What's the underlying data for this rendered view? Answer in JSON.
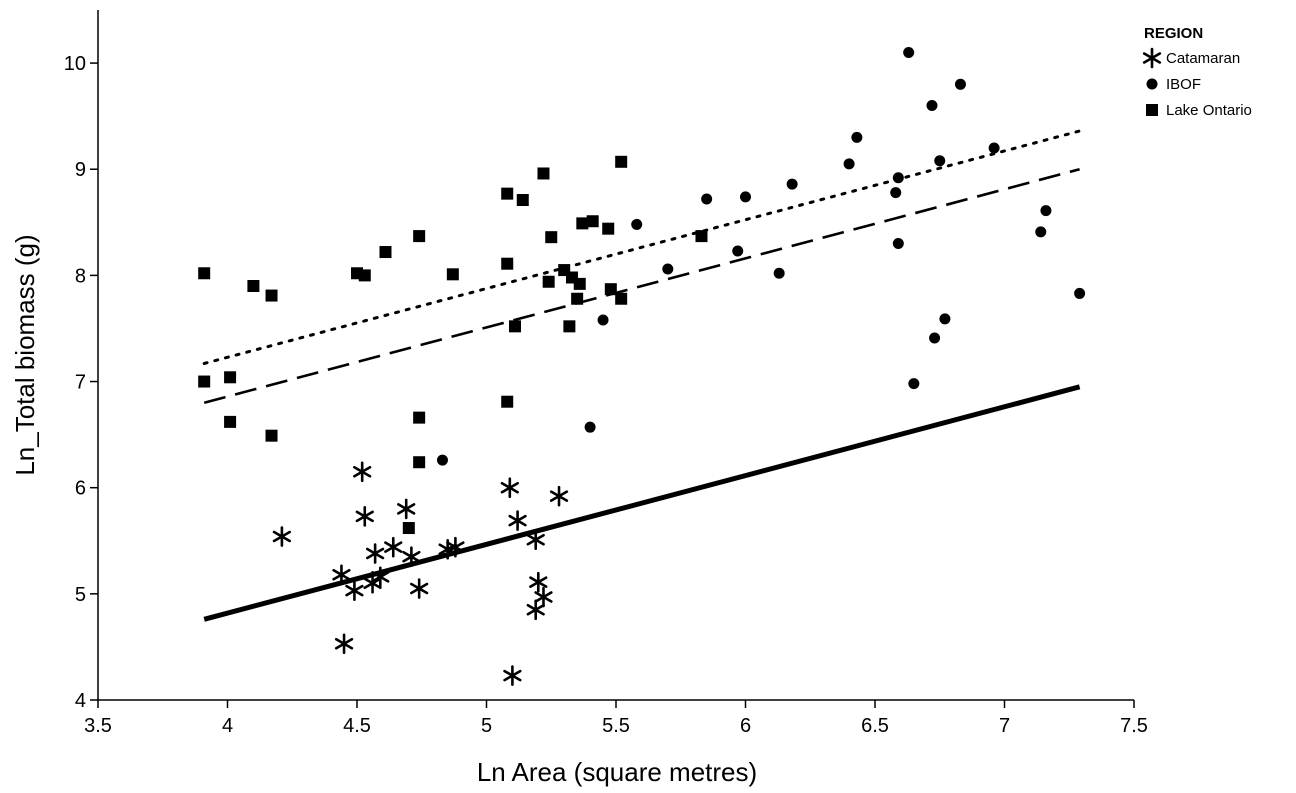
{
  "chart_data": {
    "type": "scatter",
    "title": "",
    "xlabel": "Ln Area (square metres)",
    "ylabel": "Ln_Total biomass (g)",
    "xlim": [
      3.5,
      7.5
    ],
    "ylim": [
      4,
      10.5
    ],
    "xticks": [
      3.5,
      4,
      4.5,
      5,
      5.5,
      6,
      6.5,
      7,
      7.5
    ],
    "xtick_labels": [
      "3.5",
      "4",
      "4.5",
      "5",
      "5.5",
      "6",
      "6.5",
      "7",
      "7.5"
    ],
    "yticks": [
      4,
      5,
      6,
      7,
      8,
      9,
      10
    ],
    "ytick_labels": [
      "4",
      "5",
      "6",
      "7",
      "8",
      "9",
      "10"
    ],
    "grid": false,
    "legend": {
      "title": "REGION",
      "placement": "top-right-outside",
      "entries": [
        "Catamaran",
        "IBOF",
        "Lake Ontario"
      ]
    },
    "series": [
      {
        "name": "Catamaran",
        "marker": "asterisk",
        "points": [
          [
            4.21,
            5.54
          ],
          [
            4.44,
            5.18
          ],
          [
            4.45,
            4.53
          ],
          [
            4.49,
            5.03
          ],
          [
            4.52,
            6.15
          ],
          [
            4.53,
            5.73
          ],
          [
            4.56,
            5.1
          ],
          [
            4.57,
            5.38
          ],
          [
            4.59,
            5.16
          ],
          [
            4.64,
            5.44
          ],
          [
            4.69,
            5.8
          ],
          [
            4.71,
            5.35
          ],
          [
            4.74,
            5.05
          ],
          [
            4.85,
            5.42
          ],
          [
            4.88,
            5.44
          ],
          [
            5.09,
            6.0
          ],
          [
            5.1,
            4.23
          ],
          [
            5.12,
            5.69
          ],
          [
            5.19,
            5.51
          ],
          [
            5.19,
            4.85
          ],
          [
            5.2,
            5.11
          ],
          [
            5.22,
            4.97
          ],
          [
            5.28,
            5.92
          ]
        ]
      },
      {
        "name": "IBOF",
        "marker": "circle",
        "points": [
          [
            4.83,
            6.26
          ],
          [
            5.4,
            6.57
          ],
          [
            5.45,
            7.58
          ],
          [
            5.58,
            8.48
          ],
          [
            5.7,
            8.06
          ],
          [
            5.85,
            8.72
          ],
          [
            5.97,
            8.23
          ],
          [
            6.0,
            8.74
          ],
          [
            6.13,
            8.02
          ],
          [
            6.18,
            8.86
          ],
          [
            6.4,
            9.05
          ],
          [
            6.43,
            9.3
          ],
          [
            6.58,
            8.78
          ],
          [
            6.59,
            8.3
          ],
          [
            6.59,
            8.92
          ],
          [
            6.63,
            10.1
          ],
          [
            6.65,
            6.98
          ],
          [
            6.72,
            9.6
          ],
          [
            6.73,
            7.41
          ],
          [
            6.75,
            9.08
          ],
          [
            6.77,
            7.59
          ],
          [
            6.83,
            9.8
          ],
          [
            6.96,
            9.2
          ],
          [
            7.14,
            8.41
          ],
          [
            7.16,
            8.61
          ],
          [
            7.29,
            7.83
          ]
        ]
      },
      {
        "name": "Lake Ontario",
        "marker": "square",
        "points": [
          [
            3.91,
            8.02
          ],
          [
            3.91,
            7.0
          ],
          [
            4.01,
            7.04
          ],
          [
            4.01,
            6.62
          ],
          [
            4.1,
            7.9
          ],
          [
            4.17,
            7.81
          ],
          [
            4.17,
            6.49
          ],
          [
            4.5,
            8.02
          ],
          [
            4.53,
            8.0
          ],
          [
            4.61,
            8.22
          ],
          [
            4.7,
            5.62
          ],
          [
            4.74,
            8.37
          ],
          [
            4.74,
            6.66
          ],
          [
            4.74,
            6.24
          ],
          [
            4.87,
            8.01
          ],
          [
            5.08,
            8.77
          ],
          [
            5.08,
            8.11
          ],
          [
            5.08,
            6.81
          ],
          [
            5.11,
            7.52
          ],
          [
            5.14,
            8.71
          ],
          [
            5.22,
            8.96
          ],
          [
            5.24,
            7.94
          ],
          [
            5.25,
            8.36
          ],
          [
            5.3,
            8.05
          ],
          [
            5.32,
            7.52
          ],
          [
            5.33,
            7.98
          ],
          [
            5.35,
            7.78
          ],
          [
            5.36,
            7.92
          ],
          [
            5.37,
            8.49
          ],
          [
            5.41,
            8.51
          ],
          [
            5.47,
            8.44
          ],
          [
            5.48,
            7.87
          ],
          [
            5.52,
            9.07
          ],
          [
            5.52,
            7.78
          ],
          [
            5.83,
            8.37
          ]
        ]
      }
    ],
    "fit_lines": [
      {
        "series": "Catamaran",
        "style": "solid",
        "x": [
          3.91,
          7.29
        ],
        "y": [
          4.76,
          6.95
        ]
      },
      {
        "series": "IBOF",
        "style": "dotted",
        "x": [
          3.91,
          7.29
        ],
        "y": [
          7.17,
          9.36
        ]
      },
      {
        "series": "Lake Ontario",
        "style": "dashed",
        "x": [
          3.91,
          7.29
        ],
        "y": [
          6.8,
          9.0
        ]
      }
    ]
  }
}
